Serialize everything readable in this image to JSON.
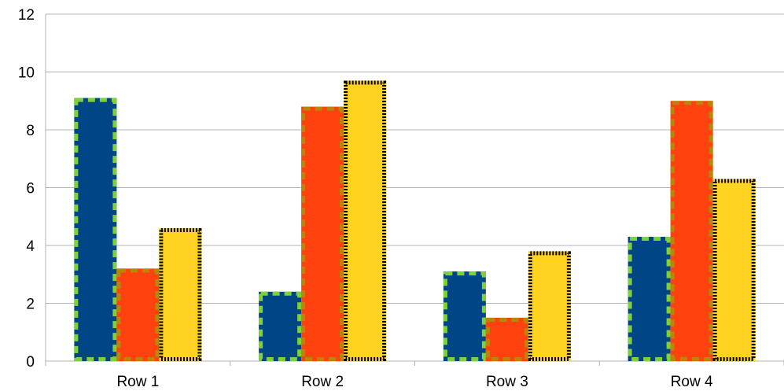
{
  "chart_data": {
    "type": "bar",
    "categories": [
      "Row 1",
      "Row 2",
      "Row 3",
      "Row 4"
    ],
    "series": [
      {
        "values": [
          9.1,
          2.4,
          3.1,
          4.3
        ],
        "color": "#004586",
        "border_color": "#7FD13B",
        "border_style": "dashed"
      },
      {
        "values": [
          3.2,
          8.8,
          1.5,
          9.0
        ],
        "color": "#FF420E",
        "border_color": "#B8860B",
        "border_style": "dashed"
      },
      {
        "values": [
          4.6,
          9.7,
          3.8,
          6.3
        ],
        "color": "#FFD320",
        "border_color": "#000000",
        "border_style": "dotted"
      }
    ],
    "yticks": [
      "0",
      "2",
      "4",
      "6",
      "8",
      "10",
      "12"
    ],
    "ylim": [
      0,
      12
    ],
    "grid": true,
    "legend": "none"
  }
}
